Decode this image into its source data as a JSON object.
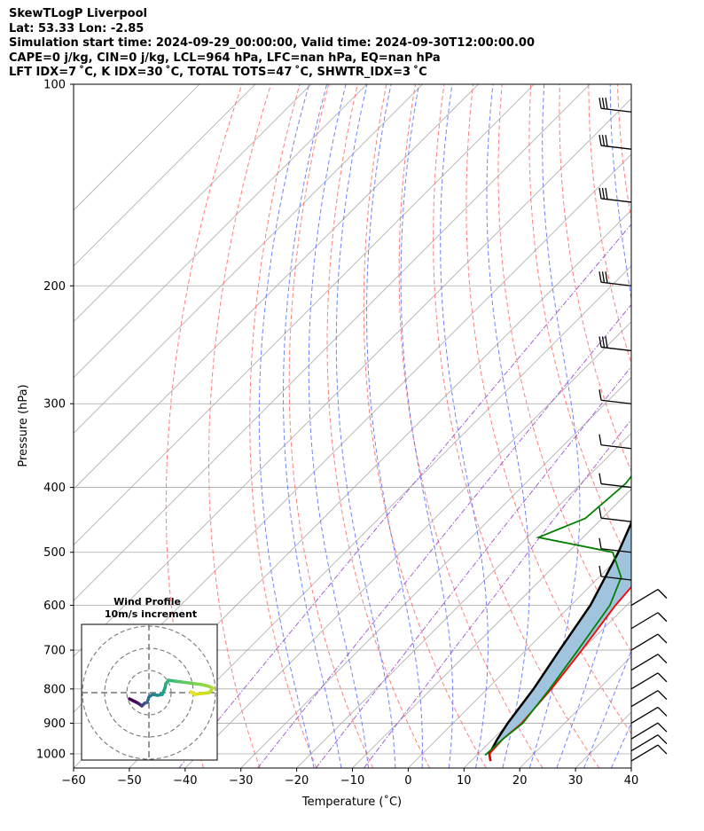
{
  "header": {
    "line1": "SkewTLogP Liverpool",
    "line2": "Lat: 53.33   Lon: -2.85",
    "line3": "Simulation start time: 2024-09-29_00:00:00, Valid time: 2024-09-30T12:00:00.00",
    "line4": "CAPE=0 j/kg, CIN=0 j/kg, LCL=964 hPa, LFC=nan hPa, EQ=nan hPa",
    "line5": "LFT IDX=7 ˚C, K IDX=30 ˚C, TOTAL TOTS=47 ˚C, SHWTR_IDX=3 ˚C"
  },
  "chart_data": {
    "type": "line",
    "subtype": "skew-T log-P",
    "xlabel": "Temperature ($^\\circ$C)",
    "xlabel_display": "Temperature (˚C)",
    "ylabel": "Pressure (hPa)",
    "xlim": [
      -60,
      40
    ],
    "ylim": [
      1050,
      100
    ],
    "y_scale": "log",
    "x_ticks": [
      -60,
      -50,
      -40,
      -30,
      -20,
      -10,
      0,
      10,
      20,
      30,
      40
    ],
    "y_ticks": [
      1000,
      900,
      800,
      700,
      600,
      500,
      400,
      300,
      200,
      100
    ],
    "grid": true,
    "colors": {
      "temperature": "#ff0000",
      "dewpoint": "#008000",
      "parcel": "#000000",
      "fill": "#a0c4de",
      "dry_adiabats": "#ff6a6a",
      "moist_adiabats": "#5a6cff",
      "mixing_ratio": "#9a4fcc",
      "isotherms": "#aaaaaa"
    },
    "series": [
      {
        "name": "temperature",
        "points": [
          [
            13.5,
            1025
          ],
          [
            12,
            1000
          ],
          [
            11.8,
            950
          ],
          [
            12.3,
            900
          ],
          [
            11.5,
            800
          ],
          [
            10,
            700
          ],
          [
            8,
            600
          ],
          [
            7.5,
            560
          ],
          [
            5,
            525
          ],
          [
            4,
            500
          ],
          [
            2,
            450
          ],
          [
            -1,
            400
          ],
          [
            -4,
            350
          ],
          [
            -7,
            330
          ],
          [
            -8,
            300
          ],
          [
            -7,
            260
          ],
          [
            -6,
            240
          ],
          [
            -3,
            215
          ],
          [
            0,
            195
          ],
          [
            3,
            175
          ],
          [
            6,
            150
          ],
          [
            9,
            125
          ],
          [
            11.5,
            112
          ],
          [
            13,
            107
          ],
          [
            15,
            100
          ]
        ]
      },
      {
        "name": "dewpoint",
        "points": [
          [
            11.5,
            1005
          ],
          [
            11.8,
            950
          ],
          [
            12.5,
            900
          ],
          [
            11.2,
            800
          ],
          [
            9.3,
            700
          ],
          [
            7,
            600
          ],
          [
            4,
            545
          ],
          [
            -2,
            500
          ],
          [
            -18,
            475
          ],
          [
            -13,
            445
          ],
          [
            -12,
            395
          ],
          [
            -13,
            360
          ],
          [
            -11,
            340
          ],
          [
            -15,
            310
          ],
          [
            -17,
            290
          ],
          [
            -17,
            250
          ],
          [
            -15,
            225
          ],
          [
            -16,
            195
          ],
          [
            -22,
            178
          ],
          [
            -19,
            140
          ],
          [
            -15,
            100
          ]
        ]
      },
      {
        "name": "parcel",
        "points": [
          [
            13.5,
            1025
          ],
          [
            12,
            1000
          ],
          [
            10.8,
            950
          ],
          [
            9.8,
            900
          ],
          [
            8.3,
            800
          ],
          [
            6,
            700
          ],
          [
            3.5,
            600
          ],
          [
            -1,
            500
          ],
          [
            -7.5,
            400
          ],
          [
            -16,
            300
          ],
          [
            -29,
            200
          ],
          [
            -47,
            100
          ]
        ]
      }
    ],
    "wind_barbs_pressure": [
      1025,
      990,
      950,
      900,
      850,
      800,
      750,
      700,
      650,
      600,
      550,
      500,
      450,
      400,
      350,
      300,
      250,
      200,
      150,
      125,
      110
    ]
  },
  "inset": {
    "title_line1": "Wind Profile",
    "title_line2": "10m/s increment"
  }
}
